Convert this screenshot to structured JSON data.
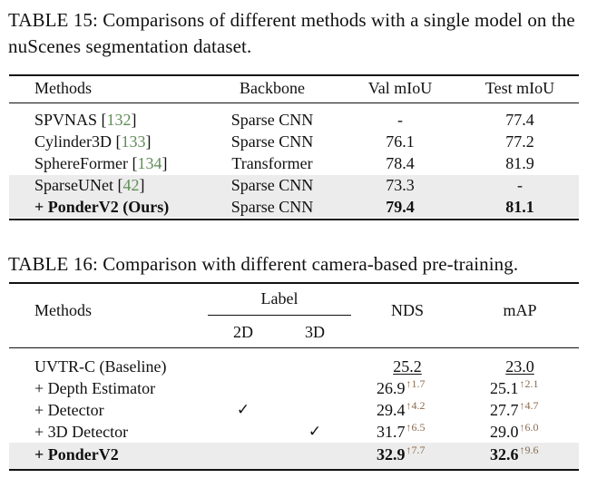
{
  "table15": {
    "caption": "TABLE 15: Comparisons of different methods with a single model on the nuScenes segmentation dataset.",
    "headers": [
      "Methods",
      "Backbone",
      "Val mIoU",
      "Test mIoU"
    ],
    "rows": [
      {
        "name": "SPVNAS",
        "ref": "132",
        "backbone": "Sparse CNN",
        "val": "-",
        "test": "77.4",
        "shaded": false,
        "bold": false
      },
      {
        "name": "Cylinder3D",
        "ref": "133",
        "backbone": "Sparse CNN",
        "val": "76.1",
        "test": "77.2",
        "shaded": false,
        "bold": false
      },
      {
        "name": "SphereFormer",
        "ref": "134",
        "backbone": "Transformer",
        "val": "78.4",
        "test": "81.9",
        "shaded": false,
        "bold": false
      },
      {
        "name": "SparseUNet",
        "ref": "42",
        "backbone": "Sparse CNN",
        "val": "73.3",
        "test": "-",
        "shaded": true,
        "bold": false
      },
      {
        "name": "+ PonderV2 (Ours)",
        "ref": "",
        "backbone": "Sparse CNN",
        "val": "79.4",
        "test": "81.1",
        "shaded": true,
        "bold": true
      }
    ]
  },
  "table16": {
    "caption": "TABLE 16: Comparison with different camera-based pre-training.",
    "headers": {
      "methods": "Methods",
      "label": "Label",
      "label_2d": "2D",
      "label_3d": "3D",
      "nds": "NDS",
      "map": "mAP"
    },
    "check_mark": "✓",
    "rows": [
      {
        "name": "UVTR-C (Baseline)",
        "l2d": false,
        "l3d": false,
        "nds": "25.2",
        "nds_gain": "",
        "map": "23.0",
        "map_gain": "",
        "shaded": false,
        "bold": false
      },
      {
        "name": "+ Depth Estimator",
        "l2d": false,
        "l3d": false,
        "nds": "26.9",
        "nds_gain": "↑1.7",
        "map": "25.1",
        "map_gain": "↑2.1",
        "shaded": false,
        "bold": false
      },
      {
        "name": "+ Detector",
        "l2d": true,
        "l3d": false,
        "nds": "29.4",
        "nds_gain": "↑4.2",
        "map": "27.7",
        "map_gain": "↑4.7",
        "shaded": false,
        "bold": false
      },
      {
        "name": "+ 3D Detector",
        "l2d": false,
        "l3d": true,
        "nds": "31.7",
        "nds_gain": "↑6.5",
        "map": "29.0",
        "map_gain": "↑6.0",
        "shaded": false,
        "bold": false
      },
      {
        "name": "+ PonderV2",
        "l2d": false,
        "l3d": false,
        "nds": "32.9",
        "nds_gain": "↑7.7",
        "map": "32.6",
        "map_gain": "↑9.6",
        "shaded": true,
        "bold": true
      }
    ]
  }
}
